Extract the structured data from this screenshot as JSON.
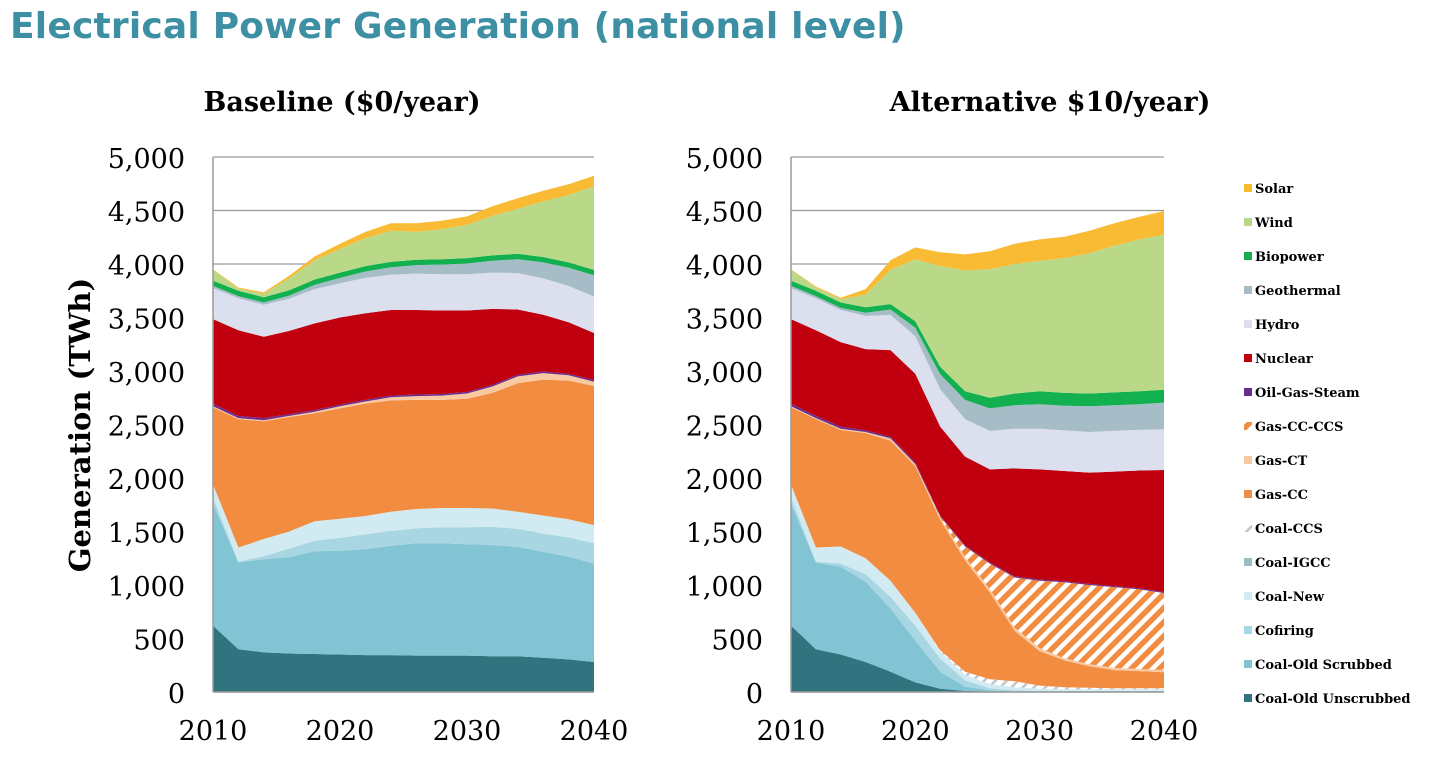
{
  "page": {
    "title": "Electrical Power Generation (national level)"
  },
  "chart_data": [
    {
      "type": "area",
      "stacked": true,
      "title": "Baseline ($0/year)",
      "ylabel": "Generation (TWh)",
      "xlabel": "",
      "xlim": [
        2010,
        2040
      ],
      "ylim": [
        0,
        5000
      ],
      "x_ticks": [
        "2010",
        "2020",
        "2030",
        "2040"
      ],
      "y_ticks": [
        "0",
        "500",
        "1,000",
        "1,500",
        "2,000",
        "2,500",
        "3,000",
        "3,500",
        "4,000",
        "4,500",
        "5,000"
      ],
      "grid": true,
      "x": [
        2010,
        2012,
        2014,
        2016,
        2018,
        2020,
        2022,
        2024,
        2026,
        2028,
        2030,
        2032,
        2034,
        2036,
        2038,
        2040
      ],
      "series": [
        {
          "name": "Coal-Old Unscrubbed",
          "color": "#31737f",
          "values": [
            620,
            400,
            370,
            360,
            355,
            350,
            345,
            345,
            340,
            340,
            340,
            335,
            335,
            320,
            305,
            280
          ]
        },
        {
          "name": "Coal-Old Scrubbed",
          "color": "#82c3d4",
          "values": [
            1140,
            810,
            870,
            900,
            960,
            970,
            990,
            1020,
            1050,
            1050,
            1040,
            1040,
            1020,
            990,
            960,
            920
          ]
        },
        {
          "name": "Cofiring",
          "color": "#a8d6e2",
          "values": [
            60,
            10,
            30,
            80,
            100,
            120,
            140,
            140,
            140,
            150,
            160,
            170,
            170,
            170,
            180,
            190
          ]
        },
        {
          "name": "Coal-New",
          "color": "#d2ebf2",
          "values": [
            120,
            130,
            160,
            160,
            180,
            180,
            170,
            180,
            180,
            180,
            180,
            170,
            160,
            170,
            170,
            170
          ]
        },
        {
          "name": "Coal-IGCC",
          "color": "#9bbcc4",
          "values": [
            0,
            0,
            0,
            0,
            0,
            0,
            0,
            0,
            0,
            0,
            0,
            0,
            0,
            0,
            0,
            0
          ]
        },
        {
          "name": "Coal-CCS",
          "color": "#ffffff",
          "values": [
            0,
            0,
            0,
            0,
            0,
            0,
            0,
            0,
            0,
            0,
            0,
            0,
            0,
            0,
            0,
            0
          ]
        },
        {
          "name": "Gas-CC",
          "color": "#f28c40",
          "values": [
            720,
            1200,
            1100,
            1070,
            1010,
            1030,
            1050,
            1040,
            1020,
            1010,
            1020,
            1080,
            1200,
            1270,
            1295,
            1300
          ]
        },
        {
          "name": "Gas-CT",
          "color": "#f9c9a2",
          "values": [
            10,
            10,
            10,
            10,
            15,
            20,
            20,
            30,
            35,
            40,
            50,
            60,
            65,
            60,
            50,
            40
          ]
        },
        {
          "name": "Gas-CC-CCS",
          "color": "#f28c40",
          "values": [
            0,
            0,
            0,
            0,
            0,
            0,
            0,
            0,
            0,
            0,
            0,
            0,
            0,
            0,
            0,
            0
          ]
        },
        {
          "name": "Oil-Gas-Steam",
          "color": "#6a2c91",
          "values": [
            25,
            20,
            20,
            15,
            15,
            15,
            15,
            15,
            15,
            15,
            15,
            15,
            15,
            15,
            15,
            15
          ]
        },
        {
          "name": "Nuclear",
          "color": "#c0000f",
          "values": [
            790,
            800,
            760,
            780,
            810,
            815,
            810,
            800,
            790,
            780,
            760,
            710,
            610,
            530,
            480,
            440
          ]
        },
        {
          "name": "Hydro",
          "color": "#dcdfee",
          "values": [
            290,
            300,
            300,
            300,
            320,
            320,
            330,
            330,
            340,
            340,
            340,
            340,
            340,
            340,
            340,
            340
          ]
        },
        {
          "name": "Geothermal",
          "color": "#a6bdc8",
          "values": [
            20,
            20,
            20,
            30,
            40,
            50,
            60,
            70,
            80,
            90,
            100,
            110,
            130,
            150,
            170,
            200
          ]
        },
        {
          "name": "Biopower",
          "color": "#12b04f",
          "values": [
            50,
            50,
            50,
            50,
            50,
            50,
            50,
            50,
            50,
            50,
            50,
            50,
            50,
            50,
            50,
            50
          ]
        },
        {
          "name": "Wind",
          "color": "#b9d989",
          "values": [
            100,
            20,
            30,
            110,
            180,
            220,
            260,
            290,
            260,
            280,
            310,
            370,
            420,
            520,
            630,
            780
          ]
        },
        {
          "name": "Solar",
          "color": "#f9bb34",
          "values": [
            5,
            10,
            15,
            25,
            35,
            50,
            60,
            70,
            80,
            80,
            80,
            90,
            100,
            100,
            100,
            100
          ]
        }
      ]
    },
    {
      "type": "area",
      "stacked": true,
      "title": "Alternative $10/year)",
      "ylabel": "",
      "xlabel": "",
      "xlim": [
        2010,
        2040
      ],
      "ylim": [
        0,
        5000
      ],
      "x_ticks": [
        "2010",
        "2020",
        "2030",
        "2040"
      ],
      "y_ticks": [
        "0",
        "500",
        "1,000",
        "1,500",
        "2,000",
        "2,500",
        "3,000",
        "3,500",
        "4,000",
        "4,500",
        "5,000"
      ],
      "grid": true,
      "x": [
        2010,
        2012,
        2014,
        2016,
        2018,
        2020,
        2022,
        2024,
        2026,
        2028,
        2030,
        2032,
        2034,
        2036,
        2038,
        2040
      ],
      "series": [
        {
          "name": "Coal-Old Unscrubbed",
          "color": "#31737f",
          "values": [
            620,
            400,
            350,
            280,
            190,
            90,
            30,
            10,
            5,
            0,
            0,
            0,
            0,
            0,
            0,
            0
          ]
        },
        {
          "name": "Coal-Old Scrubbed",
          "color": "#82c3d4",
          "values": [
            1140,
            810,
            820,
            750,
            590,
            390,
            160,
            40,
            10,
            5,
            0,
            0,
            0,
            0,
            0,
            0
          ]
        },
        {
          "name": "Cofiring",
          "color": "#a8d6e2",
          "values": [
            60,
            10,
            30,
            70,
            110,
            140,
            120,
            60,
            20,
            10,
            10,
            10,
            10,
            10,
            10,
            10
          ]
        },
        {
          "name": "Coal-New",
          "color": "#d2ebf2",
          "values": [
            120,
            130,
            160,
            150,
            150,
            120,
            70,
            50,
            40,
            30,
            20,
            15,
            15,
            15,
            15,
            15
          ]
        },
        {
          "name": "Coal-IGCC",
          "color": "#9bbcc4",
          "values": [
            0,
            0,
            0,
            0,
            0,
            0,
            0,
            0,
            0,
            0,
            0,
            0,
            0,
            0,
            0,
            0
          ]
        },
        {
          "name": "Coal-CCS",
          "color": "#ffffff",
          "values": [
            0,
            0,
            0,
            0,
            0,
            0,
            10,
            30,
            45,
            55,
            30,
            20,
            15,
            10,
            10,
            10
          ]
        },
        {
          "name": "Gas-CC",
          "color": "#f28c40",
          "values": [
            720,
            1200,
            1090,
            1170,
            1310,
            1370,
            1220,
            1040,
            810,
            470,
            320,
            250,
            200,
            170,
            160,
            150
          ]
        },
        {
          "name": "Gas-CT",
          "color": "#f9c9a2",
          "values": [
            10,
            10,
            10,
            10,
            20,
            20,
            20,
            30,
            30,
            30,
            30,
            20,
            20,
            20,
            20,
            20
          ]
        },
        {
          "name": "Gas-CC-CCS",
          "color": "#f28c40",
          "hatched": true,
          "values": [
            0,
            0,
            0,
            0,
            0,
            0,
            10,
            100,
            240,
            470,
            630,
            710,
            740,
            755,
            745,
            720
          ]
        },
        {
          "name": "Oil-Gas-Steam",
          "color": "#6a2c91",
          "values": [
            25,
            20,
            20,
            15,
            15,
            15,
            10,
            10,
            10,
            10,
            10,
            10,
            10,
            10,
            10,
            10
          ]
        },
        {
          "name": "Nuclear",
          "color": "#c0000f",
          "values": [
            790,
            800,
            790,
            760,
            810,
            830,
            830,
            830,
            870,
            1010,
            1030,
            1030,
            1040,
            1070,
            1100,
            1140
          ]
        },
        {
          "name": "Hydro",
          "color": "#dcdfee",
          "values": [
            290,
            300,
            300,
            310,
            330,
            350,
            350,
            350,
            360,
            370,
            380,
            380,
            380,
            380,
            380,
            380
          ]
        },
        {
          "name": "Geothermal",
          "color": "#a6bdc8",
          "values": [
            20,
            20,
            20,
            30,
            50,
            80,
            140,
            180,
            210,
            220,
            230,
            230,
            240,
            240,
            240,
            250
          ]
        },
        {
          "name": "Biopower",
          "color": "#12b04f",
          "values": [
            50,
            50,
            50,
            50,
            50,
            60,
            70,
            80,
            100,
            110,
            120,
            120,
            120,
            120,
            120,
            120
          ]
        },
        {
          "name": "Wind",
          "color": "#b9d989",
          "values": [
            100,
            30,
            30,
            120,
            320,
            580,
            940,
            1130,
            1200,
            1210,
            1220,
            1260,
            1310,
            1370,
            1420,
            1450
          ]
        },
        {
          "name": "Solar",
          "color": "#f9bb34",
          "values": [
            5,
            10,
            15,
            50,
            90,
            110,
            130,
            150,
            170,
            190,
            200,
            200,
            210,
            210,
            210,
            220
          ]
        }
      ]
    }
  ]
}
